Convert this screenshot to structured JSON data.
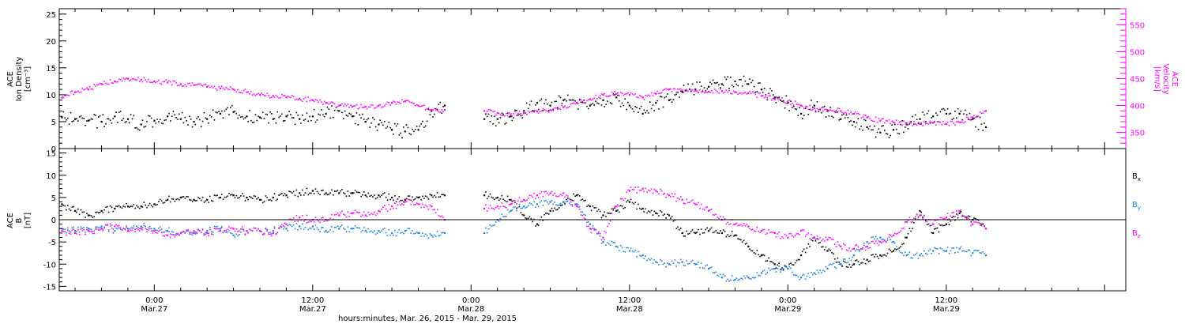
{
  "figure": {
    "xlabel": "hours:minutes, Mar. 26, 2015 - Mar. 29, 2015",
    "x_ticks": [
      {
        "t": "0:00",
        "d": "Mar.27",
        "h": 24
      },
      {
        "t": "12:00",
        "d": "Mar.27",
        "h": 36
      },
      {
        "t": "0:00",
        "d": "Mar.28",
        "h": 48
      },
      {
        "t": "12:00",
        "d": "Mar.28",
        "h": 60
      },
      {
        "t": "0:00",
        "d": "Mar.29",
        "h": 72
      },
      {
        "t": "12:00",
        "d": "Mar.29",
        "h": 84
      }
    ],
    "x_range_hours": [
      16.8,
      97.6
    ]
  },
  "chart_data": [
    {
      "type": "scatter",
      "panel": "top",
      "ylabel_left": [
        "ACE",
        "Ion Density",
        "[cm⁻³]"
      ],
      "ylabel_right": [
        "ACE",
        "Velocity",
        "[km/s]"
      ],
      "ylim_left": [
        0,
        26
      ],
      "ylim_right": [
        320,
        580
      ],
      "y_ticks_left": [
        0,
        5,
        10,
        15,
        20,
        25
      ],
      "y_ticks_right": [
        350,
        400,
        450,
        500,
        550
      ],
      "series": [
        {
          "color": "#000000",
          "axis": "left",
          "x": [
            17,
            18,
            19,
            20,
            21,
            22,
            23,
            24,
            25,
            26,
            27,
            28,
            29,
            30,
            31,
            32,
            33,
            34,
            35,
            36,
            37,
            38,
            39,
            40,
            41,
            42,
            43,
            44,
            45,
            46,
            49,
            50,
            51,
            52,
            53,
            54,
            55,
            56,
            57,
            58,
            59,
            60,
            61,
            62,
            63,
            64,
            65,
            66,
            67,
            68,
            69,
            70,
            71,
            72,
            73,
            74,
            75,
            76,
            77,
            78,
            79,
            80,
            81,
            82,
            83,
            84,
            85,
            86,
            87
          ],
          "y": [
            5.8,
            5.5,
            5.2,
            5.0,
            6.0,
            5.5,
            4.5,
            5.2,
            6.0,
            5.5,
            5.0,
            5.5,
            6.5,
            6.8,
            6.0,
            5.8,
            5.5,
            6.0,
            5.5,
            6.0,
            6.5,
            7.0,
            6.0,
            5.0,
            4.5,
            3.5,
            3.2,
            3.5,
            7.0,
            8.0,
            5.5,
            5.5,
            6.0,
            7.0,
            8.5,
            8.0,
            9.0,
            8.5,
            8.0,
            9.0,
            9.5,
            8.0,
            6.5,
            8.5,
            9.0,
            10.5,
            11.0,
            11.5,
            12.0,
            12.5,
            12.0,
            11.0,
            9.5,
            8.5,
            6.5,
            8.0,
            7.0,
            5.5,
            5.0,
            4.0,
            3.0,
            3.5,
            4.5,
            5.5,
            6.0,
            6.5,
            6.5,
            5.5,
            4.0
          ]
        },
        {
          "color": "#ff00ff",
          "axis": "right",
          "x": [
            17,
            18,
            19,
            20,
            21,
            22,
            23,
            24,
            25,
            26,
            27,
            28,
            29,
            30,
            31,
            32,
            33,
            34,
            35,
            36,
            37,
            38,
            39,
            40,
            41,
            42,
            43,
            44,
            45,
            46,
            49,
            50,
            51,
            52,
            53,
            54,
            55,
            56,
            57,
            58,
            59,
            60,
            61,
            62,
            63,
            64,
            65,
            66,
            67,
            68,
            69,
            70,
            71,
            72,
            73,
            74,
            75,
            76,
            77,
            78,
            79,
            80,
            81,
            82,
            83,
            84,
            85,
            86,
            87
          ],
          "y": [
            415,
            425,
            430,
            440,
            445,
            450,
            448,
            445,
            443,
            440,
            438,
            435,
            432,
            430,
            425,
            420,
            418,
            415,
            413,
            410,
            405,
            400,
            398,
            398,
            400,
            405,
            408,
            400,
            392,
            392,
            390,
            386,
            384,
            386,
            389,
            392,
            397,
            405,
            412,
            420,
            422,
            420,
            415,
            422,
            430,
            428,
            428,
            426,
            427,
            425,
            423,
            418,
            412,
            408,
            400,
            395,
            392,
            390,
            385,
            378,
            372,
            369,
            367,
            366,
            368,
            366,
            369,
            378,
            390
          ]
        }
      ]
    },
    {
      "type": "scatter",
      "panel": "bottom",
      "ylabel_left": [
        "ACE",
        "B",
        "[nT]"
      ],
      "ylim": [
        -16,
        16
      ],
      "y_ticks": [
        -15,
        -10,
        -5,
        0,
        5,
        10,
        15
      ],
      "zero_line": true,
      "legend": [
        {
          "label": "B",
          "sub": "x",
          "color": "#000000"
        },
        {
          "label": "B",
          "sub": "y",
          "color": "#1a7fe0"
        },
        {
          "label": "B",
          "sub": "z",
          "color": "#ff00ff"
        }
      ],
      "legend_position": "right",
      "series": [
        {
          "name": "Bx",
          "color": "#000000",
          "x": [
            17,
            18,
            19,
            20,
            21,
            22,
            23,
            24,
            25,
            26,
            27,
            28,
            29,
            30,
            31,
            32,
            33,
            34,
            35,
            36,
            37,
            38,
            39,
            40,
            41,
            42,
            43,
            44,
            45,
            46,
            49,
            50,
            51,
            52,
            53,
            54,
            55,
            56,
            57,
            58,
            59,
            60,
            61,
            62,
            63,
            64,
            65,
            66,
            67,
            68,
            69,
            70,
            71,
            72,
            73,
            74,
            75,
            76,
            77,
            78,
            79,
            80,
            81,
            82,
            83,
            84,
            85,
            86,
            87
          ],
          "y": [
            3.5,
            2.0,
            1.0,
            2.0,
            2.5,
            3.0,
            3.0,
            3.5,
            4.5,
            5.0,
            4.5,
            4.5,
            5.0,
            5.5,
            5.0,
            4.5,
            5.0,
            5.5,
            6.0,
            6.5,
            6.0,
            6.0,
            6.0,
            5.5,
            5.5,
            5.0,
            4.5,
            5.0,
            5.5,
            5.5,
            5.5,
            5.0,
            4.5,
            1.0,
            -1.0,
            2.0,
            4.0,
            5.5,
            3.0,
            1.0,
            2.0,
            4.0,
            2.5,
            1.5,
            1.0,
            -3.0,
            -3.0,
            -2.5,
            -3.0,
            -3.5,
            -6.0,
            -8.0,
            -10.0,
            -11.0,
            -8.0,
            -4.0,
            -7.0,
            -10.0,
            -10.0,
            -9.0,
            -8.0,
            -7.0,
            -4.0,
            2.0,
            -3.0,
            -1.0,
            1.5,
            0.0,
            -2.0
          ]
        },
        {
          "name": "By",
          "color": "#1a7fe0",
          "x": [
            17,
            18,
            19,
            20,
            21,
            22,
            23,
            24,
            25,
            26,
            27,
            28,
            29,
            30,
            31,
            32,
            33,
            34,
            35,
            36,
            37,
            38,
            39,
            40,
            41,
            42,
            43,
            44,
            45,
            46,
            49,
            50,
            51,
            52,
            53,
            54,
            55,
            56,
            57,
            58,
            59,
            60,
            61,
            62,
            63,
            64,
            65,
            66,
            67,
            68,
            69,
            70,
            71,
            72,
            73,
            74,
            75,
            76,
            77,
            78,
            79,
            80,
            81,
            82,
            83,
            84,
            85,
            86,
            87
          ],
          "y": [
            -2.0,
            -2.5,
            -2.0,
            -1.5,
            -2.5,
            -2.0,
            -1.5,
            -2.0,
            -2.5,
            -3.0,
            -3.0,
            -2.5,
            -2.0,
            -3.5,
            -2.5,
            -2.5,
            -2.5,
            -2.0,
            -1.5,
            -1.5,
            -2.5,
            -2.0,
            -2.0,
            -2.5,
            -2.5,
            -3.0,
            -2.5,
            -3.0,
            -3.5,
            -3.0,
            -3.0,
            0.0,
            2.0,
            3.0,
            3.5,
            4.0,
            4.0,
            3.5,
            -1.0,
            -5.0,
            -6.0,
            -7.0,
            -8.0,
            -9.5,
            -10.0,
            -9.5,
            -10.0,
            -11.0,
            -13.0,
            -13.5,
            -13.0,
            -12.0,
            -11.0,
            -11.0,
            -13.0,
            -12.0,
            -11.0,
            -10.0,
            -8.0,
            -5.0,
            -4.0,
            -5.0,
            -8.0,
            -8.0,
            -7.0,
            -7.0,
            -6.5,
            -7.5,
            -8.0
          ]
        },
        {
          "name": "Bz",
          "color": "#ff00ff",
          "x": [
            17,
            18,
            19,
            20,
            21,
            22,
            23,
            24,
            25,
            26,
            27,
            28,
            29,
            30,
            31,
            32,
            33,
            34,
            35,
            36,
            37,
            38,
            39,
            40,
            41,
            42,
            43,
            44,
            45,
            46,
            49,
            50,
            51,
            52,
            53,
            54,
            55,
            56,
            57,
            58,
            59,
            60,
            61,
            62,
            63,
            64,
            65,
            66,
            67,
            68,
            69,
            70,
            71,
            72,
            73,
            74,
            75,
            76,
            77,
            78,
            79,
            80,
            81,
            82,
            83,
            84,
            85,
            86,
            87
          ],
          "y": [
            -2.5,
            -3.0,
            -2.5,
            -2.0,
            -1.5,
            -2.5,
            -2.0,
            -2.5,
            -3.5,
            -3.0,
            -2.5,
            -3.0,
            -2.5,
            -2.0,
            -2.5,
            -2.5,
            -3.0,
            -1.0,
            0.5,
            0.0,
            0.0,
            1.0,
            1.5,
            1.0,
            2.0,
            3.0,
            4.0,
            3.5,
            3.0,
            0.0,
            2.5,
            3.0,
            3.5,
            4.5,
            5.5,
            6.0,
            6.0,
            3.0,
            -2.0,
            -4.0,
            3.0,
            6.5,
            7.0,
            6.5,
            5.5,
            4.5,
            3.5,
            2.0,
            0.0,
            -1.0,
            -1.5,
            -2.5,
            -3.0,
            -4.0,
            -2.5,
            -4.0,
            -4.5,
            -6.0,
            -6.5,
            -6.0,
            -5.0,
            -3.5,
            -0.5,
            1.0,
            -1.0,
            0.5,
            2.0,
            -1.0,
            -2.0
          ]
        }
      ]
    }
  ]
}
